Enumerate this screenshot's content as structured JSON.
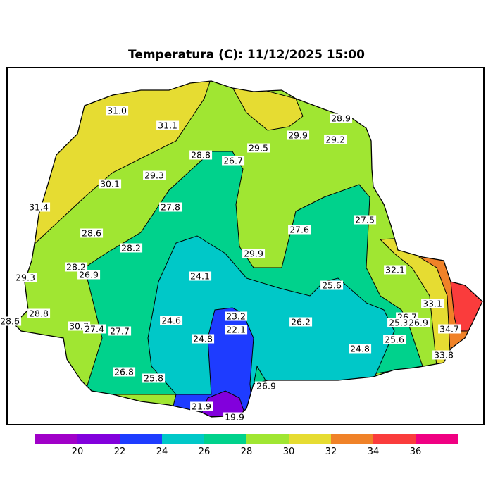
{
  "title": "Temperatura (C): 11/12/2025 15:00",
  "labels": [
    "31.0",
    "31.1",
    "28.8",
    "26.7",
    "29.5",
    "29.9",
    "29.2",
    "28.9",
    "29.3",
    "30.1",
    "31.4",
    "27.8",
    "28.6",
    "27.6",
    "27.5",
    "28.2",
    "28.2",
    "26.9",
    "29.9",
    "29.3",
    "24.1",
    "32.1",
    "25.6",
    "33.1",
    "28.8",
    "28.6",
    "23.2",
    "26.2",
    "26.7",
    "25.3",
    "26.9",
    "30.7",
    "27.4",
    "27.7",
    "24.6",
    "22.1",
    "24.8",
    "34.7",
    "25.6",
    "24.8",
    "33.8",
    "26.8",
    "25.8",
    "26.9",
    "21.9",
    "19.9"
  ],
  "colorbar": {
    "colors": [
      "#a000c8",
      "#8200dc",
      "#1e3cff",
      "#00c8c8",
      "#00d28c",
      "#a0e632",
      "#e6dc32",
      "#f08228",
      "#fa3c3c",
      "#f00082"
    ],
    "ticks": [
      "20",
      "22",
      "24",
      "26",
      "28",
      "30",
      "32",
      "34",
      "36"
    ]
  }
}
